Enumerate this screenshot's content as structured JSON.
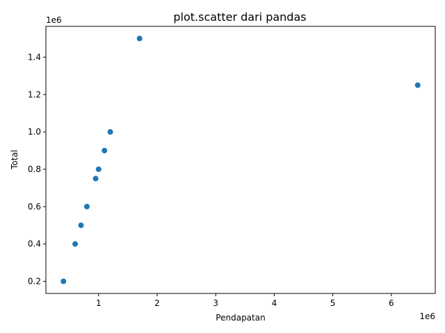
{
  "chart_data": {
    "type": "scatter",
    "title": "plot.scatter dari pandas",
    "xlabel": "Pendapatan",
    "ylabel": "Total",
    "x_offset_label": "1e6",
    "y_offset_label": "1e6",
    "xlim": [
      0.1,
      6.75
    ],
    "ylim": [
      0.135,
      1.565
    ],
    "x_ticks": [
      1,
      2,
      3,
      4,
      5,
      6
    ],
    "x_tick_labels": [
      "1",
      "2",
      "3",
      "4",
      "5",
      "6"
    ],
    "y_ticks": [
      0.2,
      0.4,
      0.6,
      0.8,
      1.0,
      1.2,
      1.4
    ],
    "y_tick_labels": [
      "0.2",
      "0.4",
      "0.6",
      "0.8",
      "1.0",
      "1.2",
      "1.4"
    ],
    "grid": false,
    "marker_color": "#1f77b4",
    "points": [
      {
        "x": 0.4,
        "y": 0.2
      },
      {
        "x": 0.6,
        "y": 0.4
      },
      {
        "x": 0.7,
        "y": 0.5
      },
      {
        "x": 0.8,
        "y": 0.6
      },
      {
        "x": 0.95,
        "y": 0.75
      },
      {
        "x": 1.0,
        "y": 0.8
      },
      {
        "x": 1.1,
        "y": 0.9
      },
      {
        "x": 1.2,
        "y": 1.0
      },
      {
        "x": 1.7,
        "y": 1.5
      },
      {
        "x": 6.45,
        "y": 1.25
      }
    ]
  }
}
